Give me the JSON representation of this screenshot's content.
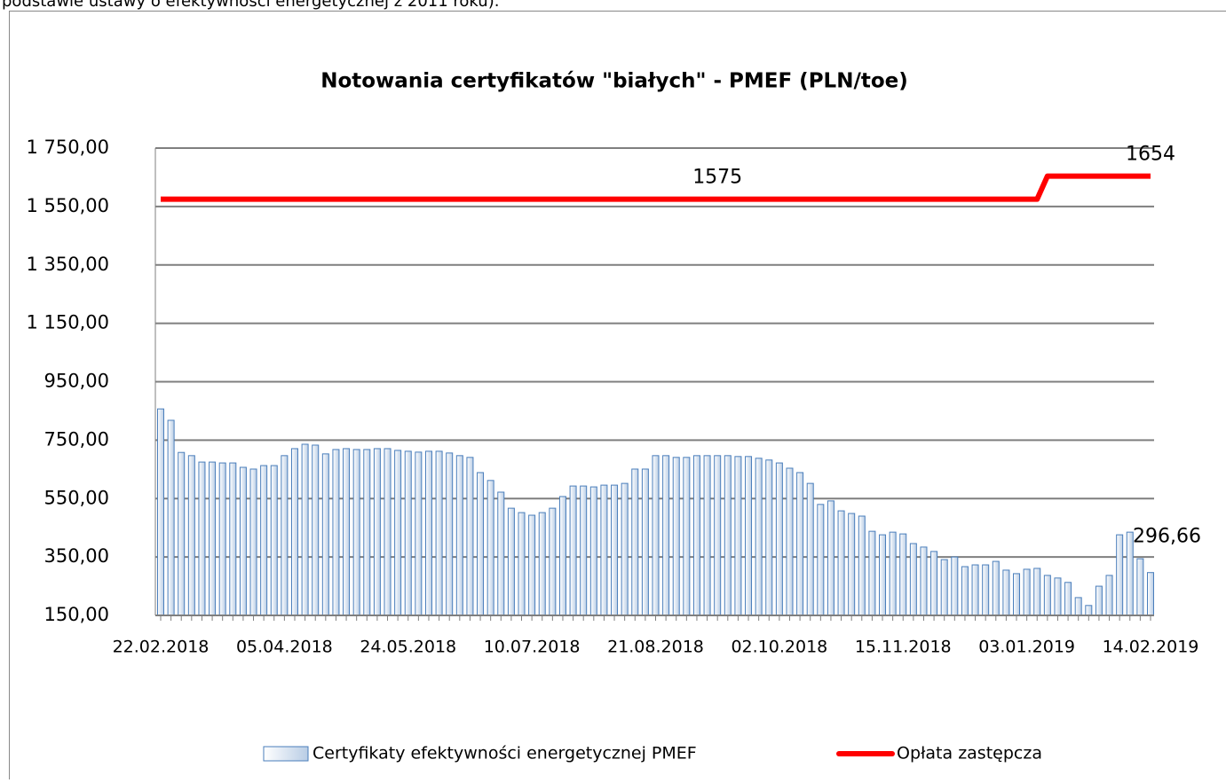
{
  "page_text": "podstawie ustawy o efektywności energetycznej z 2011 roku).",
  "chart_data": {
    "type": "bar_line",
    "title": "Notowania certyfikatów \"białych\" - PMEF (PLN/toe)",
    "categories": [
      "22.02.2018",
      null,
      null,
      null,
      null,
      null,
      null,
      null,
      null,
      null,
      null,
      null,
      "05.04.2018",
      null,
      null,
      null,
      null,
      null,
      null,
      null,
      null,
      null,
      null,
      null,
      "24.05.2018",
      null,
      null,
      null,
      null,
      null,
      null,
      null,
      null,
      null,
      null,
      null,
      "10.07.2018",
      null,
      null,
      null,
      null,
      null,
      null,
      null,
      null,
      null,
      null,
      null,
      "21.08.2018",
      null,
      null,
      null,
      null,
      null,
      null,
      null,
      null,
      null,
      null,
      null,
      "02.10.2018",
      null,
      null,
      null,
      null,
      null,
      null,
      null,
      null,
      null,
      null,
      null,
      "15.11.2018",
      null,
      null,
      null,
      null,
      null,
      null,
      null,
      null,
      null,
      null,
      null,
      "03.01.2019",
      null,
      null,
      null,
      null,
      null,
      null,
      null,
      null,
      null,
      null,
      null,
      "14.02.2019"
    ],
    "series": [
      {
        "name": "Certyfikaty efektywności energetycznej PMEF",
        "kind": "bar",
        "color": "#4a7ebb",
        "values": [
          857,
          818,
          708,
          697,
          675,
          675,
          672,
          672,
          657,
          651,
          663,
          663,
          697,
          721,
          736,
          733,
          703,
          718,
          721,
          718,
          718,
          721,
          721,
          715,
          712,
          709,
          712,
          712,
          706,
          697,
          691,
          639,
          612,
          572,
          517,
          502,
          493,
          502,
          517,
          557,
          593,
          593,
          590,
          596,
          596,
          602,
          651,
          651,
          697,
          697,
          691,
          691,
          697,
          697,
          697,
          697,
          694,
          694,
          688,
          682,
          672,
          654,
          639,
          602,
          530,
          542,
          508,
          499,
          490,
          438,
          426,
          435,
          429,
          396,
          384,
          369,
          341,
          350,
          317,
          323,
          323,
          335,
          305,
          293,
          308,
          311,
          287,
          278,
          263,
          211,
          184,
          250,
          287,
          426,
          435,
          344,
          296.66
        ],
        "value_labels": [
          null,
          null,
          null,
          null,
          null,
          null,
          null,
          null,
          null,
          null,
          null,
          null,
          null,
          null,
          null,
          null,
          null,
          null,
          null,
          null,
          null,
          null,
          null,
          null,
          null,
          null,
          null,
          null,
          null,
          null,
          null,
          null,
          null,
          null,
          null,
          null,
          null,
          null,
          null,
          null,
          null,
          null,
          null,
          null,
          null,
          null,
          null,
          null,
          null,
          null,
          null,
          null,
          null,
          null,
          null,
          null,
          null,
          null,
          null,
          null,
          null,
          null,
          null,
          null,
          null,
          null,
          null,
          null,
          null,
          null,
          null,
          null,
          null,
          null,
          null,
          null,
          null,
          null,
          null,
          null,
          null,
          null,
          null,
          null,
          null,
          null,
          null,
          null,
          null,
          null,
          null,
          null,
          null,
          null,
          null,
          null,
          "296,66"
        ]
      },
      {
        "name": "Opłata zastępcza",
        "kind": "line",
        "color": "#ff0000",
        "values": [
          1575,
          1575,
          1575,
          1575,
          1575,
          1575,
          1575,
          1575,
          1575,
          1575,
          1575,
          1575,
          1575,
          1575,
          1575,
          1575,
          1575,
          1575,
          1575,
          1575,
          1575,
          1575,
          1575,
          1575,
          1575,
          1575,
          1575,
          1575,
          1575,
          1575,
          1575,
          1575,
          1575,
          1575,
          1575,
          1575,
          1575,
          1575,
          1575,
          1575,
          1575,
          1575,
          1575,
          1575,
          1575,
          1575,
          1575,
          1575,
          1575,
          1575,
          1575,
          1575,
          1575,
          1575,
          1575,
          1575,
          1575,
          1575,
          1575,
          1575,
          1575,
          1575,
          1575,
          1575,
          1575,
          1575,
          1575,
          1575,
          1575,
          1575,
          1575,
          1575,
          1575,
          1575,
          1575,
          1575,
          1575,
          1575,
          1575,
          1575,
          1575,
          1575,
          1575,
          1575,
          1575,
          1575,
          1654,
          1654,
          1654,
          1654,
          1654,
          1654,
          1654,
          1654,
          1654,
          1654,
          1654
        ],
        "value_labels": [
          null,
          null,
          null,
          null,
          null,
          null,
          null,
          null,
          null,
          null,
          null,
          null,
          null,
          null,
          null,
          null,
          null,
          null,
          null,
          null,
          null,
          null,
          null,
          null,
          null,
          null,
          null,
          null,
          null,
          null,
          null,
          null,
          null,
          null,
          null,
          null,
          null,
          null,
          null,
          null,
          null,
          null,
          null,
          null,
          null,
          null,
          null,
          null,
          null,
          null,
          null,
          null,
          null,
          null,
          "1575",
          null,
          null,
          null,
          null,
          null,
          null,
          null,
          null,
          null,
          null,
          null,
          null,
          null,
          null,
          null,
          null,
          null,
          null,
          null,
          null,
          null,
          null,
          null,
          null,
          null,
          null,
          null,
          null,
          null,
          null,
          null,
          null,
          null,
          null,
          null,
          null,
          null,
          null,
          null,
          null,
          null,
          "1654"
        ]
      }
    ],
    "ylim": [
      150,
      1750
    ],
    "yticks": [
      {
        "value": 150,
        "label": "150,00"
      },
      {
        "value": 350,
        "label": "350,00"
      },
      {
        "value": 550,
        "label": "550,00"
      },
      {
        "value": 750,
        "label": "750,00"
      },
      {
        "value": 950,
        "label": "950,00"
      },
      {
        "value": 1150,
        "label": "1 150,00"
      },
      {
        "value": 1350,
        "label": "1 350,00"
      },
      {
        "value": 1550,
        "label": "1 550,00"
      },
      {
        "value": 1750,
        "label": "1 750,00"
      }
    ],
    "grid": true,
    "legend": "bottom"
  }
}
